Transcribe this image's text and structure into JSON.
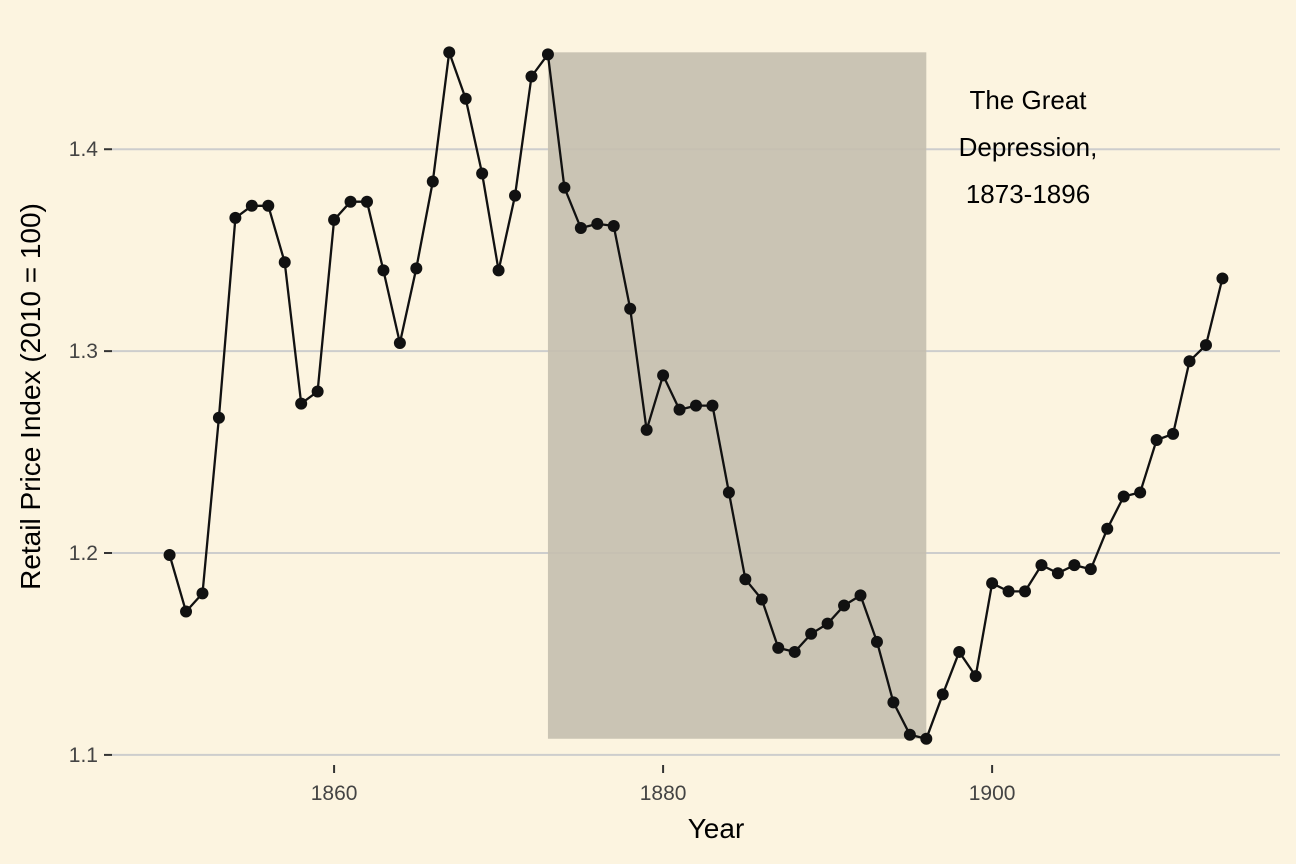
{
  "colors": {
    "background": "#fcf4e0",
    "gridline": "#cdcdcd",
    "line": "#111111",
    "shade": "#c5bfb0"
  },
  "chart_data": {
    "type": "line",
    "title": "",
    "xlabel": "Year",
    "ylabel": "Retail Price Index (2010 = 100)",
    "xlim": [
      1846.5,
      1917.5
    ],
    "ylim": [
      1.095,
      1.465
    ],
    "x_ticks": [
      1860,
      1880,
      1900
    ],
    "y_ticks": [
      1.1,
      1.2,
      1.3,
      1.4
    ],
    "y_tick_labels": [
      "1.1",
      "1.2",
      "1.3",
      "1.4"
    ],
    "grid": "horizontal major",
    "legend": "none",
    "shaded_region": {
      "x": [
        1873,
        1896
      ],
      "y": [
        1.108,
        1.448
      ],
      "label": [
        "The Great",
        "Depression,",
        "1873-1896"
      ]
    },
    "series": [
      {
        "x": [
          1850,
          1851,
          1852,
          1853,
          1854,
          1855,
          1856,
          1857,
          1858,
          1859,
          1860,
          1861,
          1862,
          1863,
          1864,
          1865,
          1866,
          1867,
          1868,
          1869,
          1870,
          1871,
          1872,
          1873,
          1874,
          1875,
          1876,
          1877,
          1878,
          1879,
          1880,
          1881,
          1882,
          1883,
          1884,
          1885,
          1886,
          1887,
          1888,
          1889,
          1890,
          1891,
          1892,
          1893,
          1894,
          1895,
          1896,
          1897,
          1898,
          1899,
          1900,
          1901,
          1902,
          1903,
          1904,
          1905,
          1906,
          1907,
          1908,
          1909,
          1910,
          1911,
          1912,
          1913,
          1914
        ],
        "values": [
          1.199,
          1.171,
          1.18,
          1.267,
          1.366,
          1.372,
          1.372,
          1.344,
          1.274,
          1.28,
          1.365,
          1.374,
          1.374,
          1.34,
          1.304,
          1.341,
          1.384,
          1.448,
          1.425,
          1.388,
          1.34,
          1.377,
          1.436,
          1.447,
          1.381,
          1.361,
          1.363,
          1.362,
          1.321,
          1.261,
          1.288,
          1.271,
          1.273,
          1.273,
          1.23,
          1.187,
          1.177,
          1.153,
          1.151,
          1.16,
          1.165,
          1.174,
          1.179,
          1.156,
          1.126,
          1.11,
          1.108,
          1.13,
          1.151,
          1.139,
          1.185,
          1.181,
          1.181,
          1.194,
          1.19,
          1.194,
          1.192,
          1.212,
          1.228,
          1.23,
          1.256,
          1.259,
          1.295,
          1.303,
          1.336
        ]
      }
    ]
  }
}
